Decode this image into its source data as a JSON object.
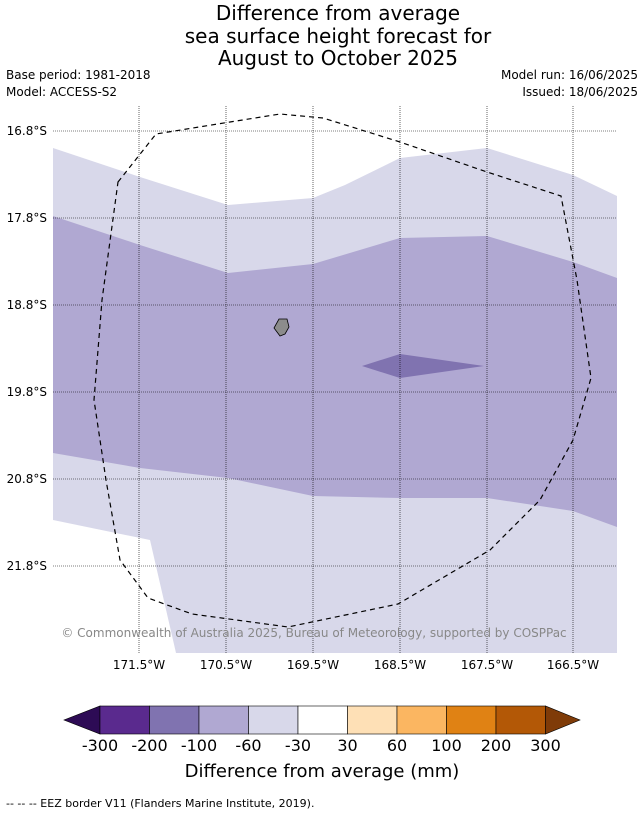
{
  "title_lines": [
    "Difference from average",
    "sea surface height forecast for",
    "August to October 2025"
  ],
  "meta": {
    "base_period": "Base period: 1981-2018",
    "model": "Model: ACCESS-S2",
    "model_run": "Model run: 16/06/2025",
    "issued": "Issued: 18/06/2025"
  },
  "map": {
    "lat_labels": [
      "16.8°S",
      "17.8°S",
      "18.8°S",
      "19.8°S",
      "20.8°S",
      "21.8°S"
    ],
    "lon_labels": [
      "171.5°W",
      "170.5°W",
      "169.5°W",
      "168.5°W",
      "167.5°W",
      "166.5°W"
    ],
    "copyright": "© Commonwealth of Australia 2025, Bureau of Meteorology, supported by COSPPac"
  },
  "colorbar": {
    "title": "Difference from average (mm)",
    "tick_labels": [
      "-300",
      "-200",
      "-100",
      "-60",
      "-30",
      "30",
      "60",
      "100",
      "200",
      "300"
    ],
    "colors": {
      "under": "#2d0b55",
      "bins": [
        "#5a2a8e",
        "#8073b0",
        "#b0a8d2",
        "#d8d8ea",
        "#ffffff",
        "#fee0b6",
        "#fbb661",
        "#e08214",
        "#b35806"
      ],
      "over": "#7f3b08"
    }
  },
  "footer": "-- -- -- EEZ border V11 (Flanders Marine Institute, 2019)."
}
